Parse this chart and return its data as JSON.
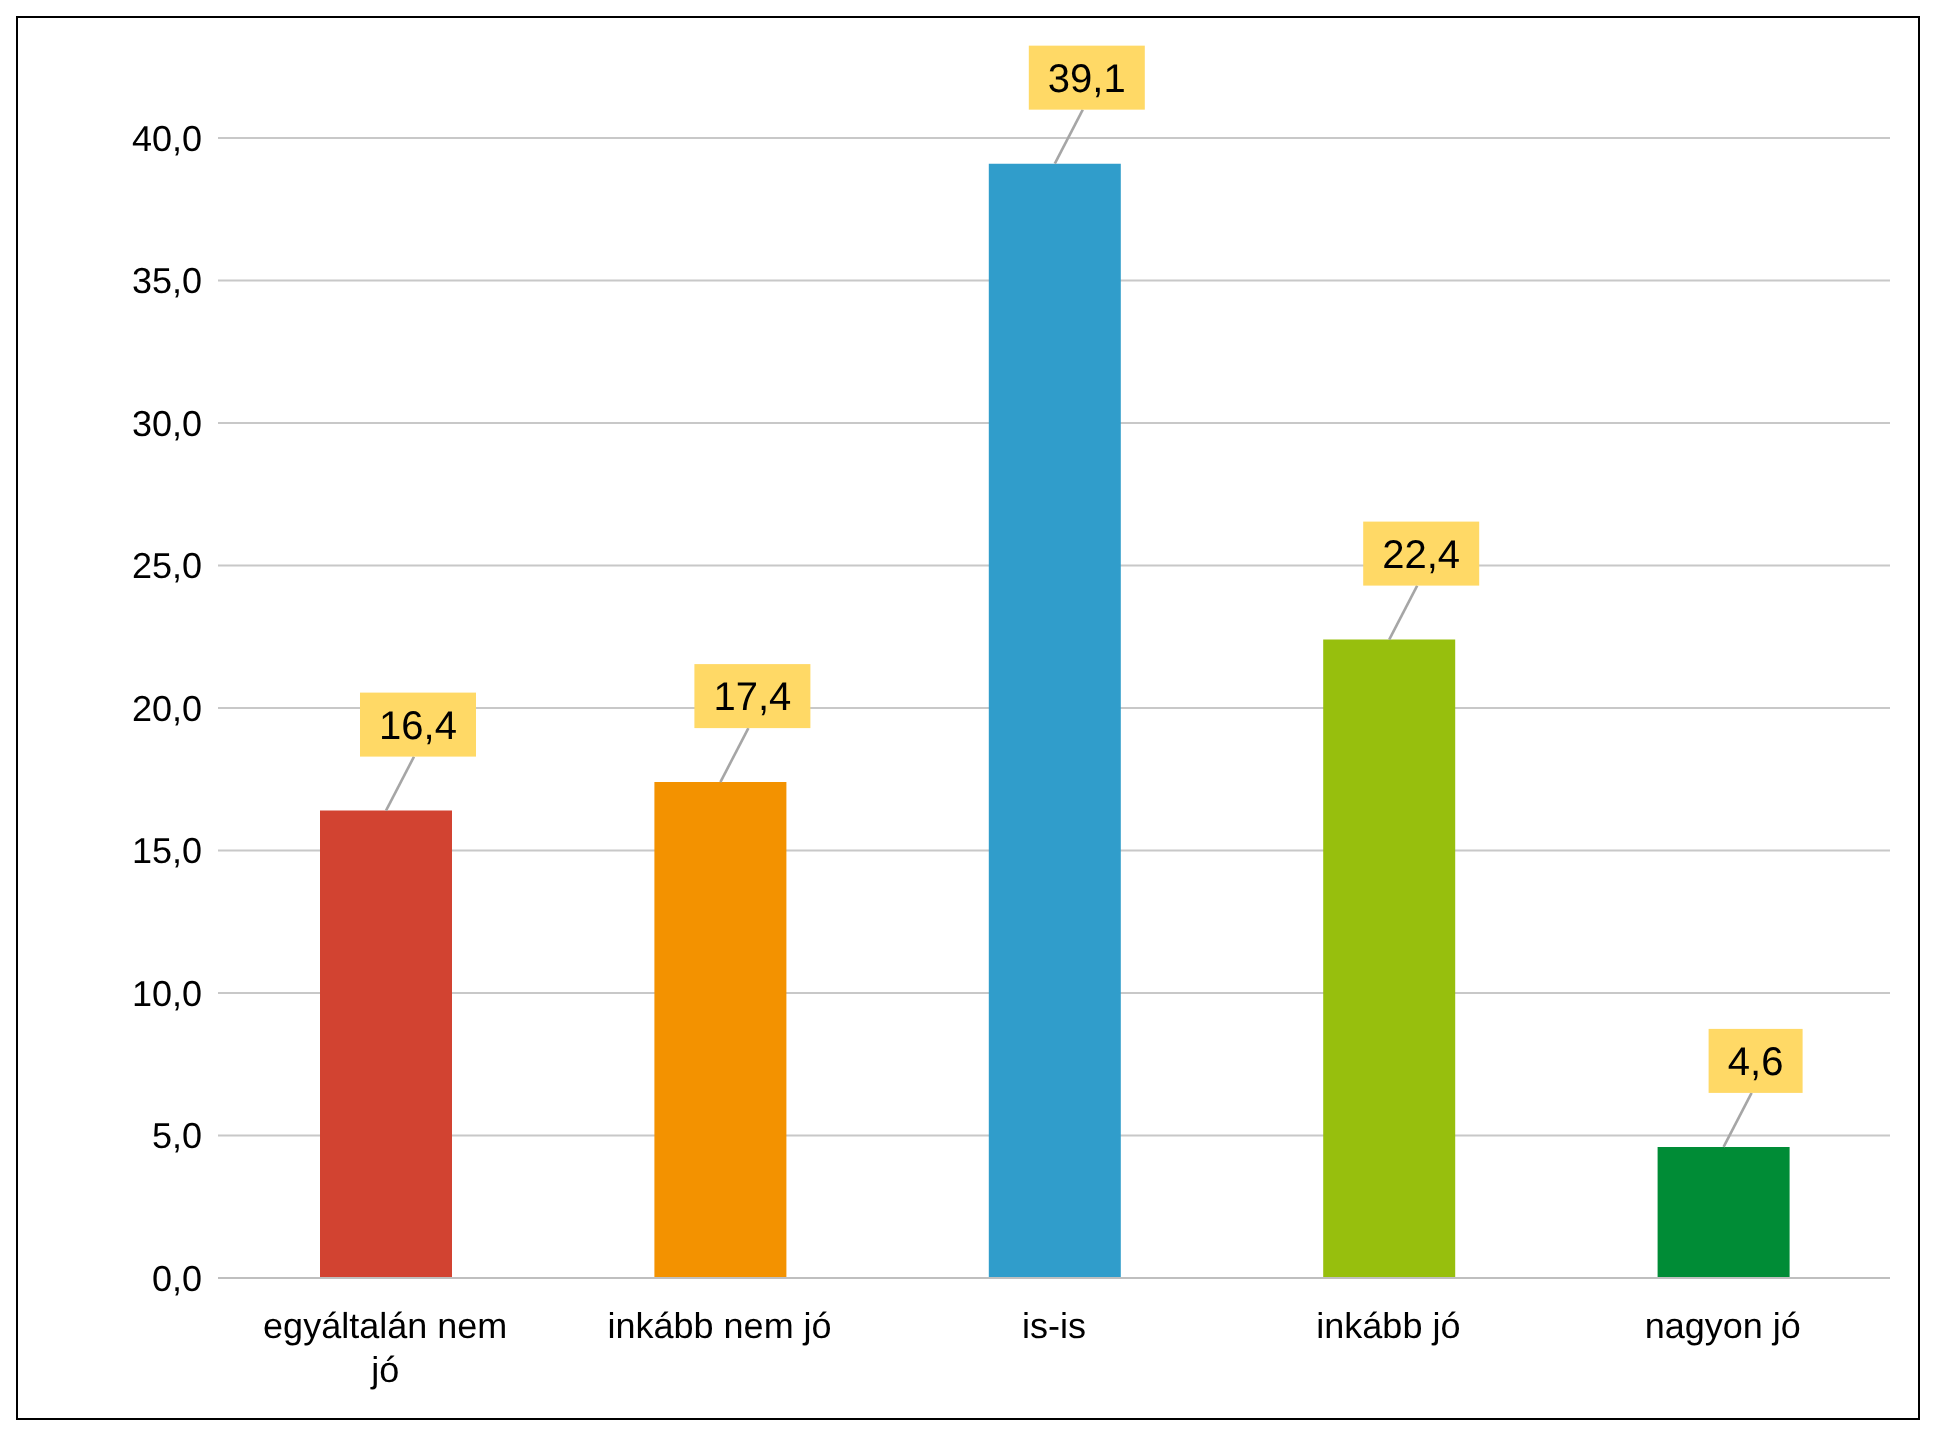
{
  "chart_data": {
    "type": "bar",
    "categories": [
      "egyáltalán nem jó",
      "inkább nem jó",
      "is-is",
      "inkább jó",
      "nagyon jó"
    ],
    "values": [
      16.4,
      17.4,
      39.1,
      22.4,
      4.6
    ],
    "colors": [
      "#d24331",
      "#f39200",
      "#309dcb",
      "#97bf0d",
      "#008c36"
    ],
    "value_labels": [
      "16,4",
      "17,4",
      "39,1",
      "22,4",
      "4,6"
    ],
    "ylim": [
      0,
      40
    ],
    "yticks": [
      {
        "value": 0,
        "label": "0,0"
      },
      {
        "value": 5,
        "label": "5,0"
      },
      {
        "value": 10,
        "label": "10,0"
      },
      {
        "value": 15,
        "label": "15,0"
      },
      {
        "value": 20,
        "label": "20,0"
      },
      {
        "value": 25,
        "label": "25,0"
      },
      {
        "value": 30,
        "label": "30,0"
      },
      {
        "value": 35,
        "label": "35,0"
      },
      {
        "value": 40,
        "label": "40,0"
      }
    ],
    "grid": "y",
    "legend": false
  }
}
